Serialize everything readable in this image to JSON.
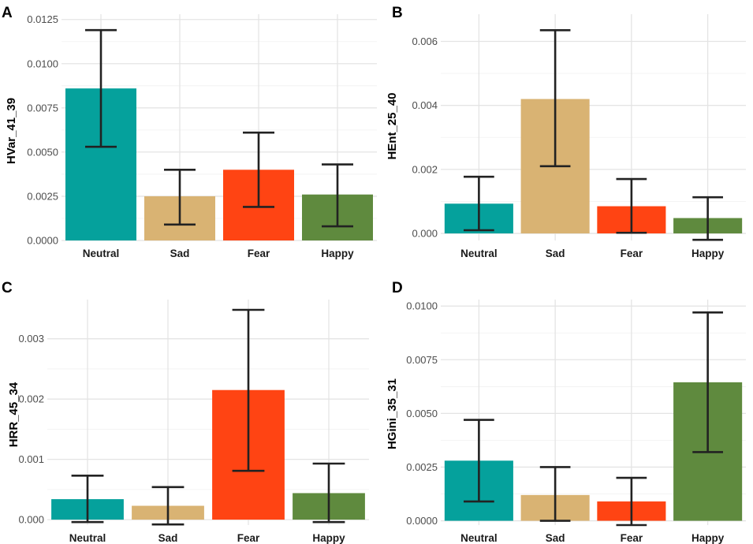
{
  "chart_data": [
    {
      "panel": "A",
      "type": "bar",
      "categories": [
        "Neutral",
        "Sad",
        "Fear",
        "Happy"
      ],
      "values": [
        0.0086,
        0.0025,
        0.004,
        0.0026
      ],
      "error_low": [
        0.0053,
        0.0009,
        0.0019,
        0.0008
      ],
      "error_high": [
        0.0119,
        0.004,
        0.0061,
        0.0043
      ],
      "ylabel": "HVar_41_39",
      "xlabel": "",
      "ylim": [
        0,
        0.0128
      ],
      "yticks": [
        0,
        0.0025,
        0.005,
        0.0075,
        0.01,
        0.0125
      ],
      "ytick_labels": [
        "0.0000",
        "0.0025",
        "0.0050",
        "0.0075",
        "0.0100",
        "0.0125"
      ],
      "colors": [
        "#05A19C",
        "#D9B373",
        "#FF4413",
        "#5F8A3E"
      ]
    },
    {
      "panel": "B",
      "type": "bar",
      "categories": [
        "Neutral",
        "Sad",
        "Fear",
        "Happy"
      ],
      "values": [
        0.00093,
        0.0042,
        0.00085,
        0.00048
      ],
      "error_low": [
        0.0001,
        0.0021,
        2e-05,
        -0.0002
      ],
      "error_high": [
        0.00177,
        0.00635,
        0.0017,
        0.00113
      ],
      "ylabel": "HEnt_25_40",
      "xlabel": "",
      "ylim": [
        -0.00022,
        0.00685
      ],
      "yticks": [
        0,
        0.002,
        0.004,
        0.006
      ],
      "ytick_labels": [
        "0.000",
        "0.002",
        "0.004",
        "0.006"
      ],
      "colors": [
        "#05A19C",
        "#D9B373",
        "#FF4413",
        "#5F8A3E"
      ]
    },
    {
      "panel": "C",
      "type": "bar",
      "categories": [
        "Neutral",
        "Sad",
        "Fear",
        "Happy"
      ],
      "values": [
        0.00034,
        0.00023,
        0.00215,
        0.00044
      ],
      "error_low": [
        -4e-05,
        -8e-05,
        0.00081,
        -4e-05
      ],
      "error_high": [
        0.00073,
        0.00054,
        0.00348,
        0.00093
      ],
      "ylabel": "HRR_45_34",
      "xlabel": "",
      "ylim": [
        -9e-05,
        0.00365
      ],
      "yticks": [
        0,
        0.001,
        0.002,
        0.003
      ],
      "ytick_labels": [
        "0.000",
        "0.001",
        "0.002",
        "0.003"
      ],
      "colors": [
        "#05A19C",
        "#D9B373",
        "#FF4413",
        "#5F8A3E"
      ]
    },
    {
      "panel": "D",
      "type": "bar",
      "categories": [
        "Neutral",
        "Sad",
        "Fear",
        "Happy"
      ],
      "values": [
        0.0028,
        0.0012,
        0.0009,
        0.00645
      ],
      "error_low": [
        0.0009,
        0.0,
        -0.0002,
        0.0032
      ],
      "error_high": [
        0.0047,
        0.0025,
        0.002,
        0.0097
      ],
      "ylabel": "HGini_35_31",
      "xlabel": "",
      "ylim": [
        -0.0002,
        0.0103
      ],
      "yticks": [
        0,
        0.0025,
        0.005,
        0.0075,
        0.01
      ],
      "ytick_labels": [
        "0.0000",
        "0.0025",
        "0.0050",
        "0.0075",
        "0.0100"
      ],
      "colors": [
        "#05A19C",
        "#D9B373",
        "#FF4413",
        "#5F8A3E"
      ]
    }
  ]
}
